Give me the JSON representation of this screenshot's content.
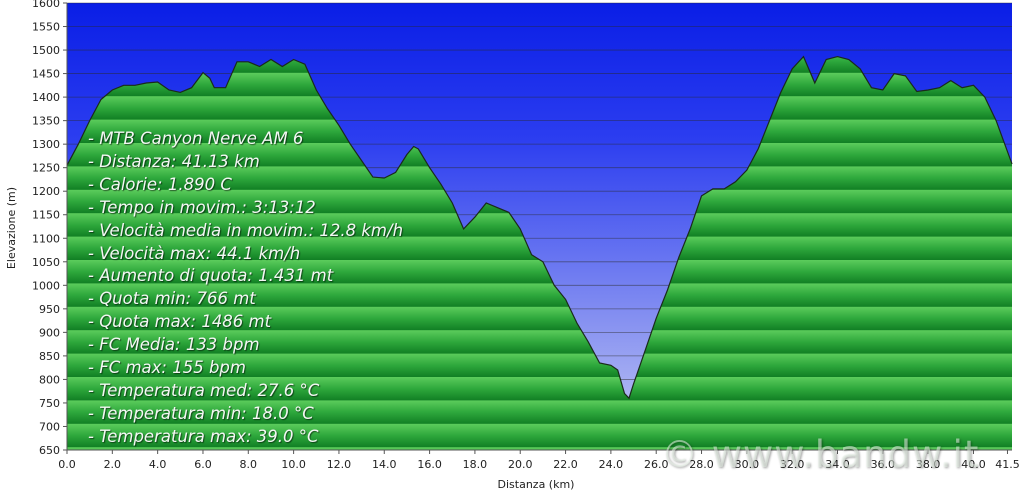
{
  "chart_data": {
    "type": "area",
    "xlabel": "Distanza  (km)",
    "ylabel": "Elevazione (m)",
    "xlim": [
      0,
      41.7
    ],
    "ylim": [
      650,
      1600
    ],
    "x_ticks": [
      "0.0",
      "2.0",
      "4.0",
      "6.0",
      "8.0",
      "10.0",
      "12.0",
      "14.0",
      "16.0",
      "18.0",
      "20.0",
      "22.0",
      "24.0",
      "26.0",
      "28.0",
      "30.0",
      "32.0",
      "34.0",
      "36.0",
      "38.0",
      "40.0",
      "41.5"
    ],
    "y_ticks": [
      "650",
      "700",
      "750",
      "800",
      "850",
      "900",
      "950",
      "1000",
      "1050",
      "1100",
      "1150",
      "1200",
      "1250",
      "1300",
      "1350",
      "1400",
      "1450",
      "1500",
      "1550",
      "1600"
    ],
    "grid": true,
    "colors": {
      "sky_top": "#0a1ee6",
      "sky_bottom": "#c6ccf2",
      "area_light": "#4ec24e",
      "area_dark": "#128a2a",
      "outline": "#1b2a1b",
      "grid": "#2a2a2a"
    },
    "x": [
      0.0,
      0.5,
      1.0,
      1.5,
      2.0,
      2.5,
      3.0,
      3.5,
      4.0,
      4.5,
      5.0,
      5.5,
      6.0,
      6.3,
      6.5,
      7.0,
      7.5,
      8.0,
      8.5,
      9.0,
      9.5,
      10.0,
      10.5,
      11.0,
      11.5,
      12.0,
      12.5,
      13.0,
      13.5,
      14.0,
      14.5,
      15.0,
      15.3,
      15.5,
      16.0,
      16.5,
      17.0,
      17.5,
      18.0,
      18.5,
      19.0,
      19.5,
      20.0,
      20.5,
      21.0,
      21.5,
      22.0,
      22.5,
      23.0,
      23.5,
      24.0,
      24.3,
      24.6,
      24.8,
      25.0,
      25.5,
      26.0,
      26.5,
      27.0,
      27.5,
      28.0,
      28.5,
      29.0,
      29.5,
      30.0,
      30.5,
      31.0,
      31.5,
      32.0,
      32.5,
      33.0,
      33.5,
      34.0,
      34.5,
      35.0,
      35.5,
      36.0,
      36.5,
      37.0,
      37.5,
      38.0,
      38.5,
      39.0,
      39.5,
      40.0,
      40.5,
      41.0,
      41.7
    ],
    "y": [
      1255,
      1300,
      1350,
      1395,
      1415,
      1425,
      1425,
      1430,
      1432,
      1415,
      1410,
      1420,
      1452,
      1440,
      1420,
      1420,
      1475,
      1475,
      1465,
      1480,
      1465,
      1480,
      1470,
      1415,
      1375,
      1340,
      1300,
      1265,
      1230,
      1228,
      1240,
      1278,
      1295,
      1290,
      1250,
      1215,
      1175,
      1120,
      1145,
      1175,
      1165,
      1155,
      1120,
      1065,
      1050,
      1000,
      970,
      920,
      880,
      835,
      830,
      820,
      770,
      760,
      790,
      860,
      930,
      990,
      1060,
      1120,
      1190,
      1205,
      1205,
      1220,
      1245,
      1290,
      1350,
      1410,
      1460,
      1486,
      1430,
      1480,
      1486,
      1480,
      1460,
      1420,
      1415,
      1450,
      1445,
      1412,
      1415,
      1420,
      1435,
      1420,
      1425,
      1400,
      1350,
      1258
    ]
  },
  "stats": [
    "- MTB Canyon Nerve AM 6",
    "- Distanza: 41.13 km",
    "- Calorie: 1.890 C",
    "- Tempo in movim.: 3:13:12",
    "- Velocità media in movim.: 12.8 km/h",
    "- Velocità max: 44.1 km/h",
    "- Aumento di quota: 1.431 mt",
    "- Quota min: 766 mt",
    "- Quota max: 1486 mt",
    "- FC Media: 133 bpm",
    "- FC max: 155 bpm",
    "- Temperatura med: 27.6 °C",
    "- Temperatura min: 18.0 °C",
    "- Temperatura max: 39.0 °C"
  ],
  "watermark": "© www.bandw.it"
}
